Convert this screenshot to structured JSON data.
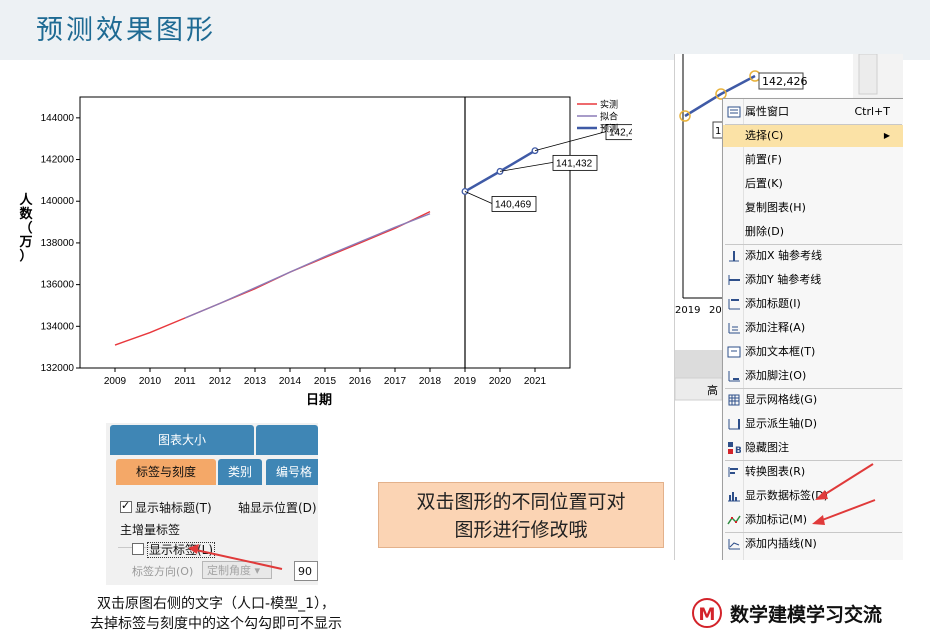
{
  "slide": {
    "title": "预测效果图形"
  },
  "chart_data": {
    "type": "line",
    "xlabel": "日期",
    "ylabel_chars": [
      "人",
      "数",
      "（",
      "万",
      "）"
    ],
    "ylim": [
      132000,
      145000
    ],
    "yticks": [
      "144000",
      "142000",
      "140000",
      "138000",
      "136000",
      "134000",
      "132000"
    ],
    "xticks": [
      "2009",
      "2010",
      "2011",
      "2012",
      "2013",
      "2014",
      "2015",
      "2016",
      "2017",
      "2018",
      "2019",
      "2020",
      "2021"
    ],
    "legend_position": "top-right",
    "series": [
      {
        "name": "实测",
        "color": "#e8383d",
        "x": [
          2009.0,
          2010.0,
          2011.0,
          2012.0,
          2013.0,
          2014.0,
          2015.0,
          2016.0,
          2017.0,
          2018.0
        ],
        "values": [
          133100,
          133700,
          134400,
          135100,
          135800,
          136600,
          137300,
          138000,
          138700,
          139500
        ]
      },
      {
        "name": "拟合",
        "color": "#8b7bb7",
        "x": [
          2011.0,
          2012.0,
          2013.0,
          2014.0,
          2015.0,
          2016.0,
          2017.0,
          2018.0
        ],
        "values": [
          134400,
          135100,
          135850,
          136600,
          137350,
          138050,
          138750,
          139400
        ]
      },
      {
        "name": "预测",
        "color": "#3f5aa6",
        "x": [
          2019,
          2020,
          2021
        ],
        "values": [
          140469,
          141432,
          142426
        ]
      }
    ],
    "data_labels": [
      "140,469",
      "141,432",
      "142,426"
    ],
    "reference_line_x": 2019
  },
  "context_menu": {
    "partial_value_label": "142,426",
    "partial_left_label": "1",
    "partial_axis_labels": [
      "2019",
      "20"
    ],
    "partial_bottom_label": "高",
    "items": [
      {
        "label": "属性窗口",
        "shortcut": "Ctrl+T",
        "icon": "properties-icon"
      },
      {
        "label": "选择(C)",
        "submenu": "▶",
        "selected": true
      },
      {
        "label": "前置(F)"
      },
      {
        "label": "后置(K)"
      },
      {
        "label": "复制图表(H)"
      },
      {
        "label": "删除(D)"
      },
      {
        "label": "添加X 轴参考线",
        "icon": "x-reference-line-icon"
      },
      {
        "label": "添加Y 轴参考线",
        "icon": "y-reference-line-icon"
      },
      {
        "label": "添加标题(I)",
        "icon": "title-icon"
      },
      {
        "label": "添加注释(A)",
        "icon": "annotation-icon"
      },
      {
        "label": "添加文本框(T)",
        "icon": "text-box-icon"
      },
      {
        "label": "添加脚注(O)",
        "icon": "footnote-icon"
      },
      {
        "label": "显示网格线(G)",
        "icon": "grid-lines-icon"
      },
      {
        "label": "显示派生轴(D)",
        "icon": "derived-axis-icon"
      },
      {
        "label": "隐藏图注",
        "icon": "legend-icon"
      },
      {
        "label": "转换图表(R)",
        "icon": "transpose-chart-icon"
      },
      {
        "label": "显示数据标签(D)",
        "icon": "data-labels-icon"
      },
      {
        "label": "添加标记(M)",
        "icon": "markers-icon"
      },
      {
        "label": "添加内插线(N)",
        "icon": "interpolation-line-icon"
      }
    ]
  },
  "properties_panel": {
    "tabs_top": [
      "图表大小"
    ],
    "tabs": [
      "标签与刻度",
      "类别",
      "编号格"
    ],
    "show_axis_title": "显示轴标题(T)",
    "show_axis_title_checked": true,
    "axis_position_label": "轴显示位置(D):",
    "group_label": "主增量标签",
    "show_labels": "显示标签(L)",
    "show_labels_checked": false,
    "label_orientation": "标签方向(O)",
    "orientation_value": "定制角度",
    "angle_value": "90"
  },
  "callout": {
    "line1": "双击图形的不同位置可对",
    "line2": "图形进行修改哦"
  },
  "caption": {
    "line1": "双击原图右侧的文字（人口-模型_1），",
    "line2": "去掉标签与刻度中的这个勾勾即可不显示"
  },
  "brand": {
    "logo_letter": "M",
    "name": "数学建模学习交流"
  },
  "colors": {
    "title": "#1e6a93",
    "arrow": "#e03a3a",
    "highlight": "#fbe2a6",
    "callout_bg": "#fbd4b4",
    "tab_active": "#f4a868",
    "tab_blue": "#3f86b5"
  }
}
